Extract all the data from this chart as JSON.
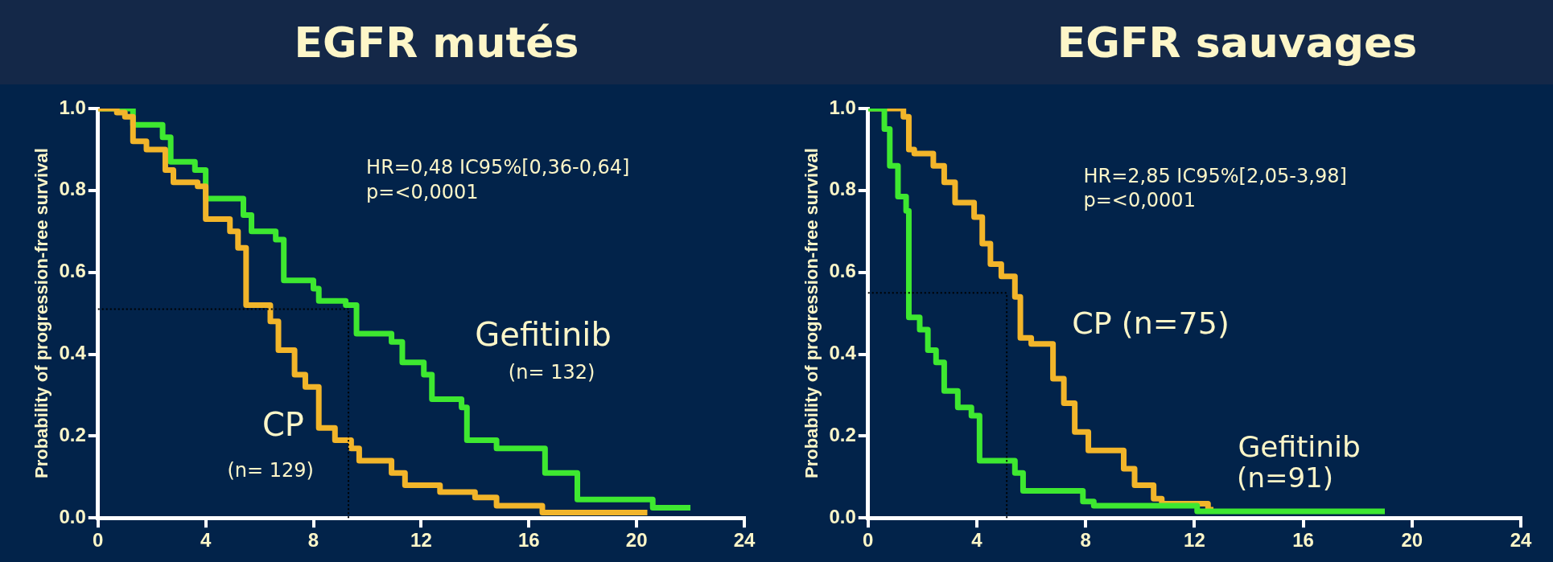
{
  "chart_data": [
    {
      "type": "step",
      "title": "EGFR mutés",
      "ylabel": "Probability of progression-free survival",
      "xlim": [
        0,
        24
      ],
      "xticks": [
        0,
        4,
        8,
        12,
        16,
        20,
        24
      ],
      "ylim": [
        0,
        1
      ],
      "yticks": [
        {
          "value": 0,
          "label": "0.0"
        },
        {
          "value": 0.2,
          "label": "0.2"
        },
        {
          "value": 0.4,
          "label": "0.4"
        },
        {
          "value": 0.6,
          "label": "0.6"
        },
        {
          "value": 0.8,
          "label": "0.8"
        },
        {
          "value": 1,
          "label": "1.0"
        }
      ],
      "grid": false,
      "legend": false,
      "marker": "none",
      "line_style": "solid",
      "series": [
        {
          "name": "Gefitinib",
          "color": "#3ee830",
          "x": [
            0,
            1.3,
            2.4,
            2.7,
            3.6,
            4.0,
            5.4,
            5.7,
            6.6,
            6.9,
            8.0,
            8.2,
            9.2,
            9.6,
            10.9,
            11.3,
            12.1,
            12.4,
            13.5,
            13.7,
            14.8,
            16.6,
            17.8,
            20.6,
            22.0
          ],
          "values": [
            1,
            0.96,
            0.93,
            0.87,
            0.85,
            0.78,
            0.74,
            0.7,
            0.68,
            0.58,
            0.56,
            0.53,
            0.52,
            0.45,
            0.43,
            0.38,
            0.35,
            0.29,
            0.27,
            0.19,
            0.17,
            0.11,
            0.045,
            0.025,
            0.025
          ]
        },
        {
          "name": "CP",
          "color": "#f2b52a",
          "x": [
            0,
            0.7,
            1.0,
            1.3,
            1.8,
            2.5,
            2.8,
            3.7,
            4.0,
            4.9,
            5.2,
            5.5,
            6.4,
            6.7,
            7.3,
            7.7,
            8.2,
            8.8,
            9.4,
            9.7,
            10.9,
            11.4,
            12.7,
            14.0,
            14.8,
            16.5,
            20.4
          ],
          "values": [
            1,
            0.99,
            0.98,
            0.92,
            0.9,
            0.85,
            0.82,
            0.81,
            0.73,
            0.7,
            0.66,
            0.52,
            0.48,
            0.41,
            0.35,
            0.32,
            0.22,
            0.19,
            0.17,
            0.14,
            0.11,
            0.08,
            0.063,
            0.05,
            0.03,
            0.013,
            0.013
          ]
        }
      ],
      "ref_lines": [
        {
          "axis": "y",
          "value": 0.51,
          "color": "#000000",
          "line_style": "dotted"
        },
        {
          "axis": "x",
          "value": 9.3,
          "color": "#000000",
          "line_style": "dotted"
        }
      ],
      "annotations": [
        "HR=0,48 IC95%[0,36-0,64]",
        "p=<0,0001",
        "(n= 132)",
        "(n= 129)"
      ]
    },
    {
      "type": "step",
      "title": "EGFR sauvages",
      "ylabel": "Probability of progression-free survival",
      "xlim": [
        0,
        24
      ],
      "xticks": [
        0,
        4,
        8,
        12,
        16,
        20,
        24
      ],
      "ylim": [
        0,
        1
      ],
      "yticks": [
        {
          "value": 0,
          "label": "0.0"
        },
        {
          "value": 0.2,
          "label": "0.2"
        },
        {
          "value": 0.4,
          "label": "0.4"
        },
        {
          "value": 0.6,
          "label": "0.6"
        },
        {
          "value": 0.8,
          "label": "0.8"
        },
        {
          "value": 1,
          "label": "1.0"
        }
      ],
      "grid": false,
      "legend": false,
      "marker": "none",
      "line_style": "solid",
      "series": [
        {
          "name": "CP (n=75)",
          "color": "#f2b52a",
          "x": [
            0,
            1.3,
            1.5,
            1.7,
            2.4,
            2.8,
            3.2,
            3.9,
            4.2,
            4.5,
            4.9,
            5.4,
            5.6,
            6.0,
            6.8,
            7.2,
            7.6,
            8.1,
            9.4,
            9.8,
            10.5,
            10.8,
            12.5,
            12.7
          ],
          "values": [
            1,
            0.98,
            0.9,
            0.89,
            0.86,
            0.82,
            0.77,
            0.735,
            0.67,
            0.62,
            0.59,
            0.54,
            0.44,
            0.425,
            0.34,
            0.28,
            0.21,
            0.165,
            0.12,
            0.08,
            0.047,
            0.035,
            0.02,
            0.02
          ]
        },
        {
          "name": "Gefitinib",
          "color": "#3ee830",
          "x": [
            0,
            0.6,
            0.8,
            1.1,
            1.4,
            1.5,
            1.9,
            2.2,
            2.5,
            2.8,
            3.3,
            3.8,
            4.1,
            5.4,
            5.7,
            7.9,
            8.3,
            12.1,
            19.0
          ],
          "values": [
            1,
            0.95,
            0.86,
            0.785,
            0.75,
            0.49,
            0.46,
            0.41,
            0.38,
            0.31,
            0.27,
            0.25,
            0.14,
            0.11,
            0.066,
            0.04,
            0.03,
            0.016,
            0.016
          ]
        }
      ],
      "ref_lines": [
        {
          "axis": "y",
          "value": 0.55,
          "color": "#000000",
          "line_style": "dotted"
        },
        {
          "axis": "x",
          "value": 5.1,
          "color": "#000000",
          "line_style": "dotted"
        }
      ],
      "annotations": [
        "HR=2,85 IC95%[2,05-3,98]",
        "p=<0,0001",
        "(n=91)"
      ]
    }
  ]
}
